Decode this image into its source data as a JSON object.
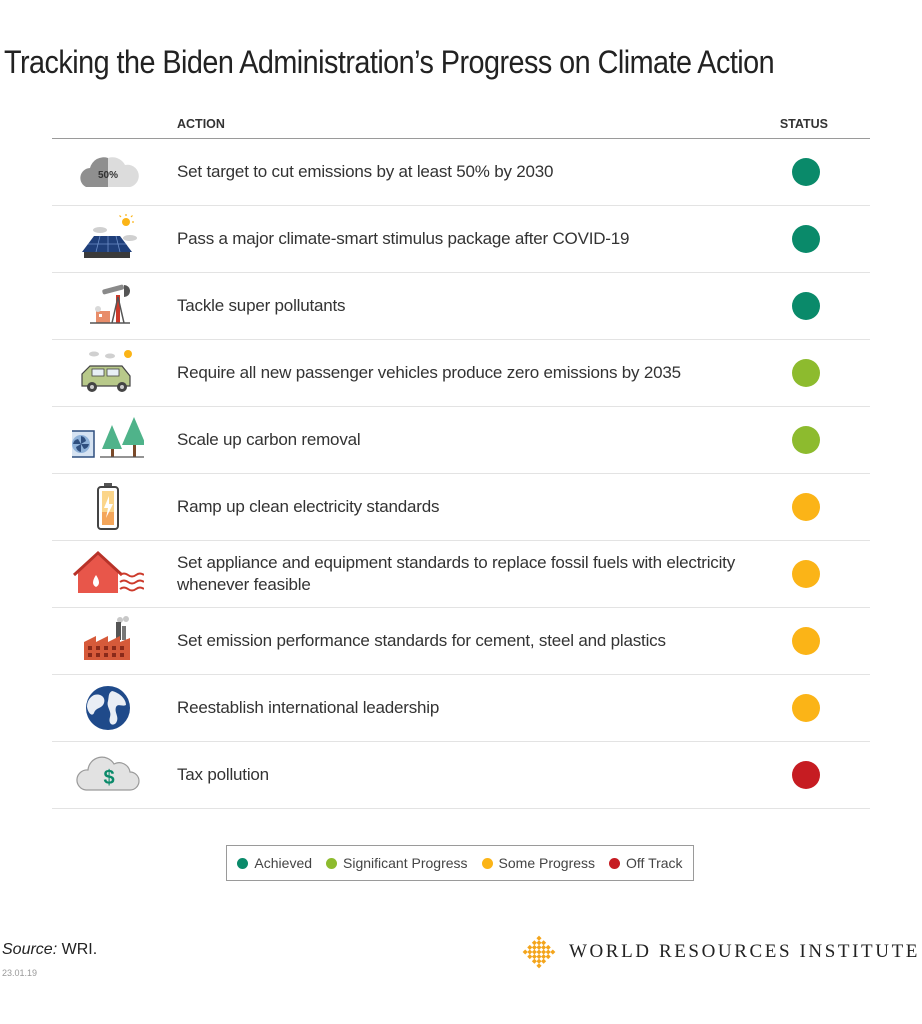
{
  "title": "Tracking the Biden Administration’s Progress on Climate Action",
  "chart_data": {
    "type": "table",
    "columns": [
      "ACTION",
      "STATUS"
    ],
    "rows": [
      {
        "icon": "cloud-50-percent-icon",
        "cloud_label": "50%",
        "action": "Set target to cut emissions by at least 50% by 2030",
        "status": "Achieved"
      },
      {
        "icon": "solar-roof-icon",
        "action": "Pass a major climate-smart stimulus package after COVID-19",
        "status": "Achieved"
      },
      {
        "icon": "oil-pump-icon",
        "action": "Tackle super pollutants",
        "status": "Achieved"
      },
      {
        "icon": "car-icon",
        "action": "Require all new passenger vehicles produce zero emissions by 2035",
        "status": "Significant Progress"
      },
      {
        "icon": "fan-and-trees-icon",
        "action": "Scale up carbon removal",
        "status": "Significant Progress"
      },
      {
        "icon": "battery-icon",
        "action": "Ramp up clean electricity standards",
        "status": "Some Progress"
      },
      {
        "icon": "house-heat-icon",
        "action": "Set appliance and equipment standards to replace fossil fuels with electricity whenever feasible",
        "status": "Some Progress"
      },
      {
        "icon": "factory-icon",
        "action": "Set emission performance standards for cement, steel and plastics",
        "status": "Some Progress"
      },
      {
        "icon": "globe-icon",
        "action": "Reestablish international leadership",
        "status": "Some Progress"
      },
      {
        "icon": "money-cloud-icon",
        "action": "Tax pollution",
        "status": "Off Track"
      }
    ],
    "legend": [
      {
        "label": "Achieved",
        "color": "#0a8a6a"
      },
      {
        "label": "Significant Progress",
        "color": "#8dbb2e"
      },
      {
        "label": "Some Progress",
        "color": "#fbb417"
      },
      {
        "label": "Off Track",
        "color": "#c61c22"
      }
    ],
    "legend_position": "bottom-center"
  },
  "source": {
    "label": "Source:",
    "text": "WRI."
  },
  "date": "23.01.19",
  "logo": {
    "text": "WORLD RESOURCES INSTITUTE",
    "color": "#f4a51c"
  }
}
